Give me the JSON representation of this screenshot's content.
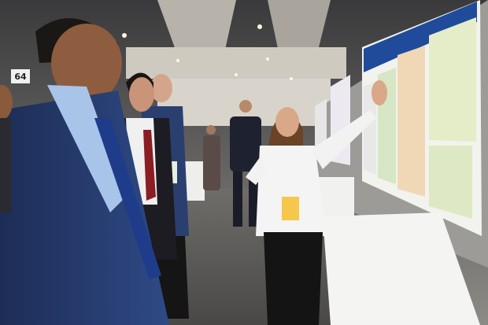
{
  "sign": {
    "label": "64"
  }
}
